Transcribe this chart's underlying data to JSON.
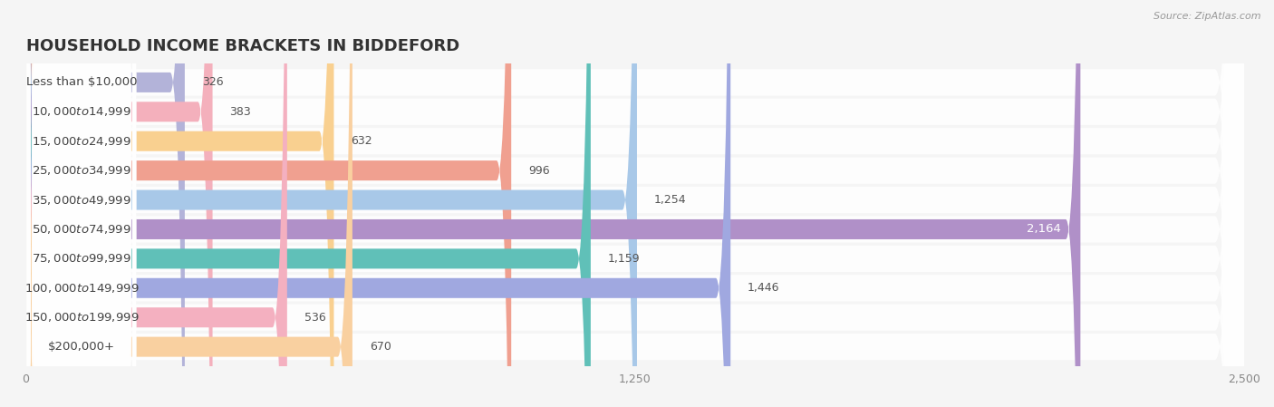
{
  "title": "HOUSEHOLD INCOME BRACKETS IN BIDDEFORD",
  "source": "Source: ZipAtlas.com",
  "categories": [
    "Less than $10,000",
    "$10,000 to $14,999",
    "$15,000 to $24,999",
    "$25,000 to $34,999",
    "$35,000 to $49,999",
    "$50,000 to $74,999",
    "$75,000 to $99,999",
    "$100,000 to $149,999",
    "$150,000 to $199,999",
    "$200,000+"
  ],
  "values": [
    326,
    383,
    632,
    996,
    1254,
    2164,
    1159,
    1446,
    536,
    670
  ],
  "bar_colors": [
    "#b3b3d9",
    "#f4b0bc",
    "#f9d090",
    "#f0a090",
    "#a8c8e8",
    "#b090c8",
    "#60c0b8",
    "#a0a8e0",
    "#f4b0c0",
    "#f9d0a0"
  ],
  "xlim": [
    0,
    2500
  ],
  "xticks": [
    0,
    1250,
    2500
  ],
  "background_color": "#f5f5f5",
  "row_bg_color": "#ebebeb",
  "title_fontsize": 13,
  "label_fontsize": 9.5,
  "value_fontsize": 9
}
